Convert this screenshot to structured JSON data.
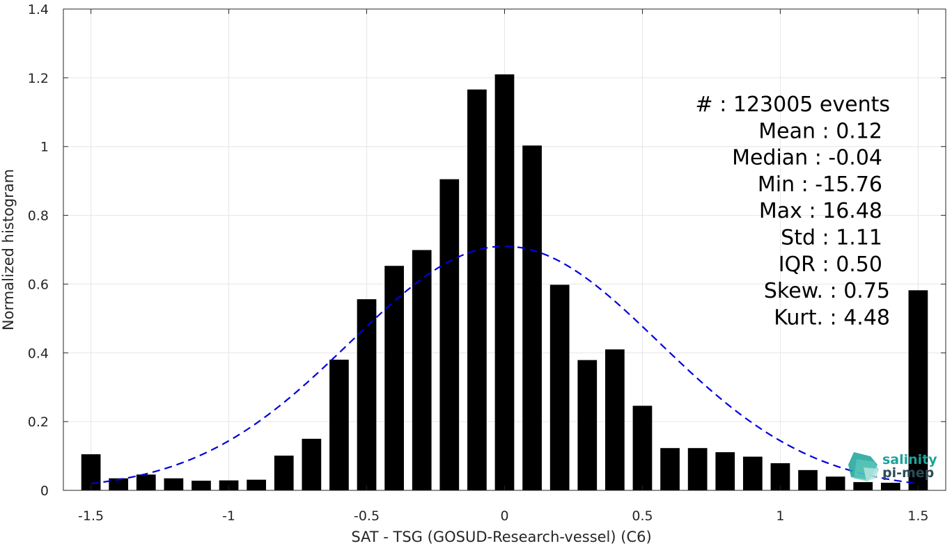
{
  "chart_data": {
    "type": "bar",
    "xlabel": "SAT - TSG (GOSUD-Research-vessel) (C6)",
    "ylabel": "Normalized histogram",
    "xlim": [
      -1.6,
      1.6
    ],
    "ylim": [
      0,
      1.4
    ],
    "grid": true,
    "x_ticks": [
      -1.5,
      -1,
      -0.5,
      0,
      0.5,
      1,
      1.5
    ],
    "x_tick_labels": [
      "-1.5",
      "-1",
      "-0.5",
      "0",
      "0.5",
      "1",
      "1.5"
    ],
    "y_ticks": [
      0,
      0.2,
      0.4,
      0.6,
      0.8,
      1,
      1.2,
      1.4
    ],
    "y_tick_labels": [
      "0",
      "0.2",
      "0.4",
      "0.6",
      "0.8",
      "1",
      "1.2",
      "1.4"
    ],
    "bar_width": 0.07,
    "x": [
      -1.5,
      -1.4,
      -1.3,
      -1.2,
      -1.1,
      -1.0,
      -0.9,
      -0.8,
      -0.7,
      -0.6,
      -0.5,
      -0.4,
      -0.3,
      -0.2,
      -0.1,
      0.0,
      0.1,
      0.2,
      0.3,
      0.4,
      0.5,
      0.6,
      0.7,
      0.8,
      0.9,
      1.0,
      1.1,
      1.2,
      1.3,
      1.4,
      1.5
    ],
    "values": [
      0.105,
      0.035,
      0.046,
      0.035,
      0.028,
      0.029,
      0.031,
      0.101,
      0.15,
      0.38,
      0.556,
      0.653,
      0.699,
      0.905,
      1.166,
      1.21,
      1.003,
      0.598,
      0.379,
      0.41,
      0.246,
      0.123,
      0.123,
      0.111,
      0.098,
      0.079,
      0.059,
      0.04,
      0.024,
      0.022,
      0.582
    ],
    "fit_curve": {
      "style": "dashed",
      "color": "#0000dd",
      "mean": 0.0,
      "std": 0.56,
      "peak": 0.71,
      "x_range": [
        -1.5,
        1.5
      ]
    },
    "bar_color": "#000000"
  },
  "stats": [
    {
      "label": "#  : 123005 events"
    },
    {
      "label": "Mean : 0.12"
    },
    {
      "label": "Median : -0.04"
    },
    {
      "label": "Min : -15.76"
    },
    {
      "label": "Max : 16.48"
    },
    {
      "label": "Std : 1.11"
    },
    {
      "label": "IQR : 0.50"
    },
    {
      "label": "Skew. : 0.75"
    },
    {
      "label": "Kurt. : 4.48"
    }
  ],
  "logo": {
    "line1": "salinity",
    "line2": "pi-mep",
    "color": "#1aa39a",
    "dark_color": "#2d4b57"
  }
}
